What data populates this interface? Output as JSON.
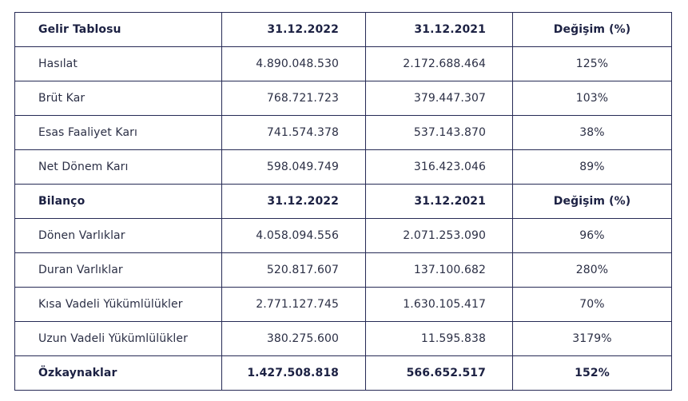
{
  "income_statement": {
    "header": {
      "label": "Gelir Tablosu",
      "col_2022": "31.12.2022",
      "col_2021": "31.12.2021",
      "col_change": "Değişim (%)"
    },
    "rows": [
      {
        "label": "Hasılat",
        "v2022": "4.890.048.530",
        "v2021": "2.172.688.464",
        "change": "125%"
      },
      {
        "label": "Brüt Kar",
        "v2022": "768.721.723",
        "v2021": "379.447.307",
        "change": "103%"
      },
      {
        "label": "Esas Faaliyet Karı",
        "v2022": "741.574.378",
        "v2021": "537.143.870",
        "change": "38%"
      },
      {
        "label": "Net Dönem Karı",
        "v2022": "598.049.749",
        "v2021": "316.423.046",
        "change": "89%"
      }
    ]
  },
  "balance_sheet": {
    "header": {
      "label": "Bilanço",
      "col_2022": "31.12.2022",
      "col_2021": "31.12.2021",
      "col_change": "Değişim (%)"
    },
    "rows": [
      {
        "label": "Dönen Varlıklar",
        "v2022": "4.058.094.556",
        "v2021": "2.071.253.090",
        "change": "96%"
      },
      {
        "label": "Duran Varlıklar",
        "v2022": "520.817.607",
        "v2021": "137.100.682",
        "change": "280%"
      },
      {
        "label": "Kısa Vadeli Yükümlülükler",
        "v2022": "2.771.127.745",
        "v2021": "1.630.105.417",
        "change": "70%"
      },
      {
        "label": "Uzun Vadeli Yükümlülükler",
        "v2022": "380.275.600",
        "v2021": "11.595.838",
        "change": "3179%"
      }
    ],
    "total": {
      "label": "Özkaynaklar",
      "v2022": "1.427.508.818",
      "v2021": "566.652.517",
      "change": "152%"
    }
  },
  "colors": {
    "border": "#262a55",
    "text": "#2b2f45",
    "header_text": "#1c2143"
  }
}
